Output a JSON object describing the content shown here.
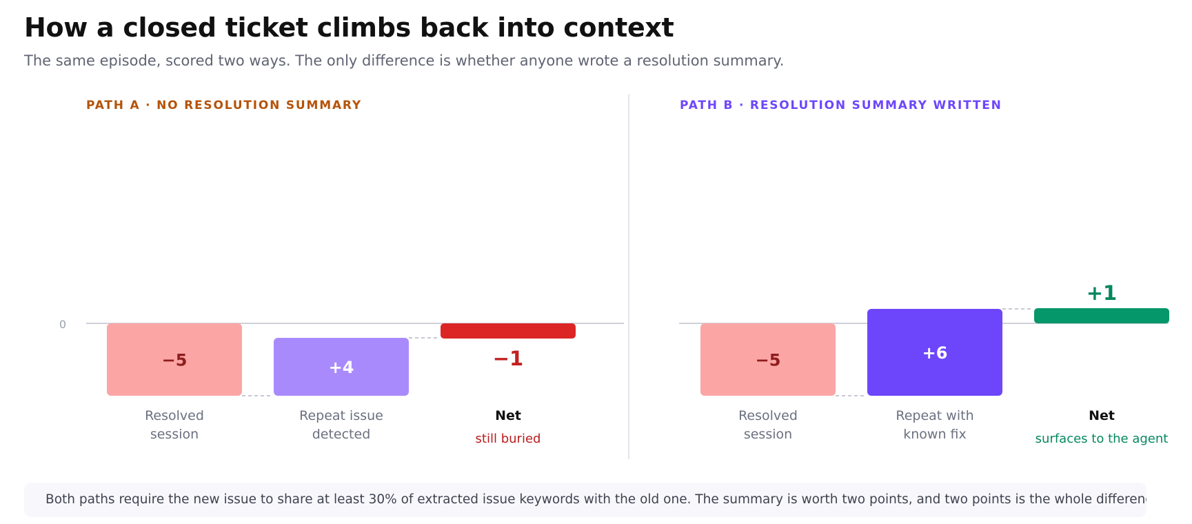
{
  "title": "How a closed ticket climbs back into context",
  "subtitle": "The same episode, scored two ways. The only difference is whether anyone wrote a resolution summary.",
  "footnote": "Both paths require the new issue to share at least 30% of extracted issue keywords with the old one. The summary is worth two points, and two points is the whole difference.",
  "chart_data": [
    {
      "type": "bar",
      "subtype": "waterfall",
      "panel_label": "PATH A · NO RESOLUTION SUMMARY",
      "y_tick_labels": [
        "0"
      ],
      "categories": [
        {
          "label_lines": [
            "Resolved",
            "session"
          ],
          "kind": "step",
          "value": -5,
          "value_label": "−5",
          "color": "#fba5a5",
          "label_color": "#8e1d1d"
        },
        {
          "label_lines": [
            "Repeat issue",
            "detected"
          ],
          "kind": "step",
          "value": 4,
          "value_label": "+4",
          "color": "#a98afd",
          "label_color": "#ffffff"
        },
        {
          "label_lines": [
            "Net"
          ],
          "kind": "net",
          "value": -1,
          "value_label": "−1",
          "color": "#dc2626",
          "label_color": "#c32020",
          "note": "still buried",
          "note_color": "#b91c1c"
        }
      ],
      "accent_color": "#b45309"
    },
    {
      "type": "bar",
      "subtype": "waterfall",
      "panel_label": "PATH B · RESOLUTION SUMMARY WRITTEN",
      "y_tick_labels": [],
      "categories": [
        {
          "label_lines": [
            "Resolved",
            "session"
          ],
          "kind": "step",
          "value": -5,
          "value_label": "−5",
          "color": "#fba5a5",
          "label_color": "#8e1d1d"
        },
        {
          "label_lines": [
            "Repeat with",
            "known fix"
          ],
          "kind": "step",
          "value": 6,
          "value_label": "+6",
          "color": "#6d46fc",
          "label_color": "#ffffff"
        },
        {
          "label_lines": [
            "Net"
          ],
          "kind": "net",
          "value": 1,
          "value_label": "+1",
          "color": "#059669",
          "label_color": "#05875f",
          "note": "surfaces to the agent",
          "note_color": "#05875f"
        }
      ],
      "accent_color": "#6d46fc"
    }
  ]
}
